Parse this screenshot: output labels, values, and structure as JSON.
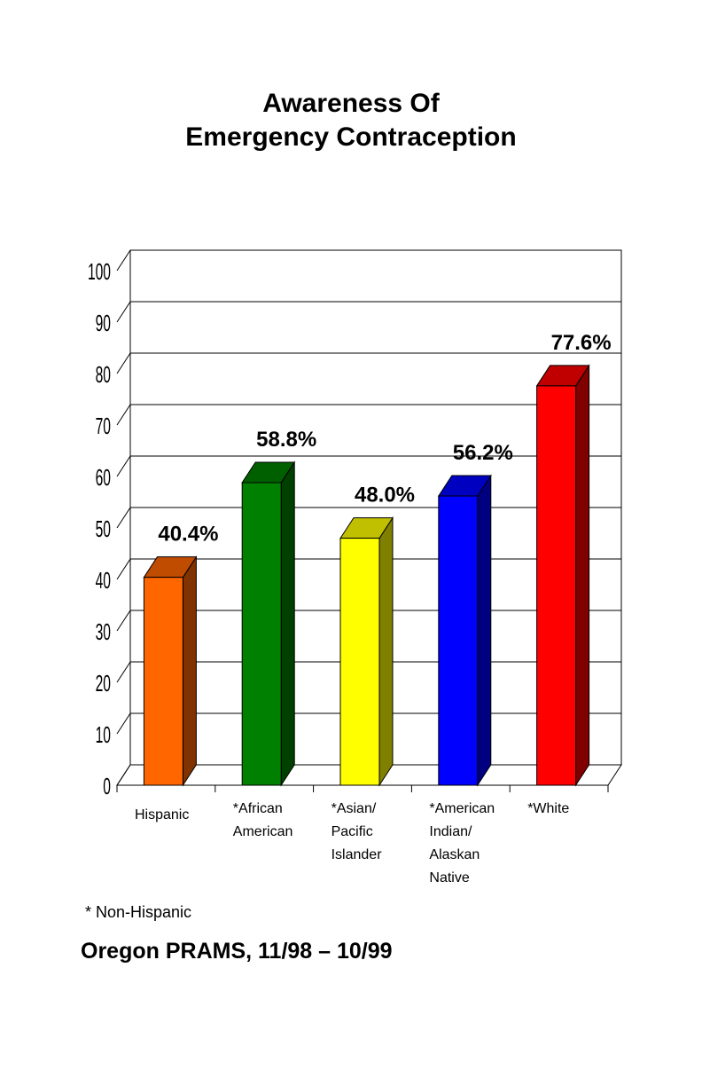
{
  "chart_data": {
    "type": "bar",
    "title_lines": [
      "Awareness Of",
      "Emergency Contraception"
    ],
    "categories": [
      "Hispanic",
      "*African\nAmerican",
      "*Asian/\nPacific\nIslander",
      "*American\nIndian/\nAlaskan\nNative",
      "*White"
    ],
    "values": [
      40.4,
      58.8,
      48.0,
      56.2,
      77.6
    ],
    "data_labels": [
      "40.4%",
      "58.8%",
      "48.0%",
      "56.2%",
      "77.6%"
    ],
    "ylim": [
      0,
      100
    ],
    "yticks": [
      0,
      10,
      20,
      30,
      40,
      50,
      60,
      70,
      80,
      90,
      100
    ],
    "grid": true,
    "style": "3d",
    "colors": [
      {
        "front": "#FF6600",
        "side": "#803300",
        "top": "#C04C00"
      },
      {
        "front": "#008000",
        "side": "#004000",
        "top": "#006000"
      },
      {
        "front": "#FFFF00",
        "side": "#808000",
        "top": "#C0C000"
      },
      {
        "front": "#0000FF",
        "side": "#000080",
        "top": "#0000C0"
      },
      {
        "front": "#FF0000",
        "side": "#800000",
        "top": "#C00000"
      }
    ]
  },
  "footnote": "* Non-Hispanic",
  "source": "Oregon PRAMS, 11/98 – 10/99"
}
